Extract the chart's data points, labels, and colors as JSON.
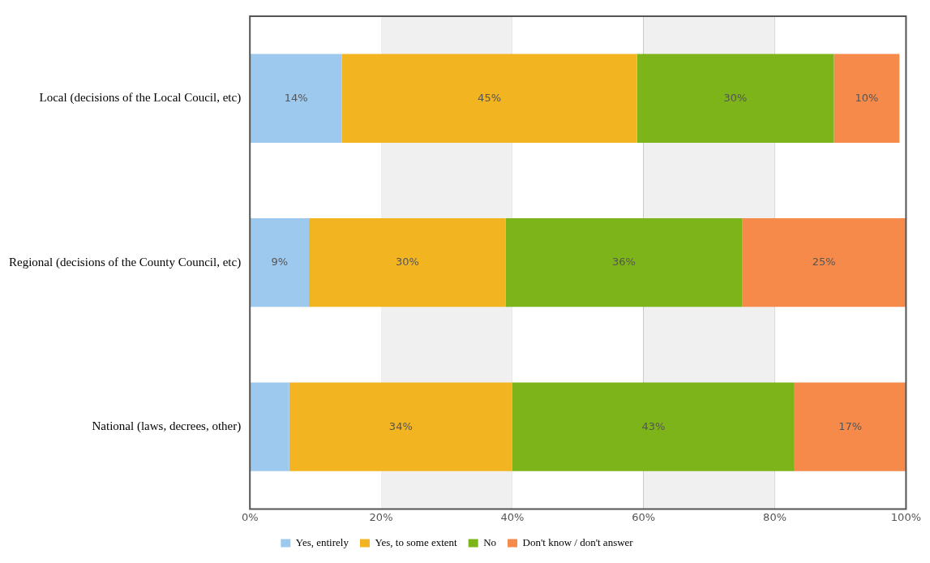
{
  "chart_data": {
    "type": "bar",
    "orientation": "horizontal",
    "stacked": true,
    "categories": [
      "Local (decisions of the Local Coucil, etc)",
      "Regional (decisions of the County Council, etc)",
      "National (laws, decrees, other)"
    ],
    "series": [
      {
        "name": "Yes, entirely",
        "color": "#9ec9ef",
        "values": [
          14,
          9,
          6
        ],
        "value_labels": [
          "14%",
          "9%",
          null
        ]
      },
      {
        "name": "Yes, to some extent",
        "color": "#f2b420",
        "values": [
          45,
          30,
          34
        ],
        "value_labels": [
          "45%",
          "30%",
          "34%"
        ]
      },
      {
        "name": "No",
        "color": "#7db41a",
        "values": [
          30,
          36,
          43
        ],
        "value_labels": [
          "30%",
          "36%",
          "43%"
        ]
      },
      {
        "name": "Don't know / don't answer",
        "color": "#f58a4b",
        "values": [
          10,
          25,
          17
        ],
        "value_labels": [
          "10%",
          "25%",
          "17%"
        ]
      }
    ],
    "xlim": [
      0,
      100
    ],
    "xticks": [
      {
        "value": 0,
        "label": "0%"
      },
      {
        "value": 20,
        "label": "20%"
      },
      {
        "value": 40,
        "label": "40%"
      },
      {
        "value": 60,
        "label": "60%"
      },
      {
        "value": 80,
        "label": "80%"
      },
      {
        "value": 100,
        "label": "100%"
      }
    ],
    "bands": [
      {
        "axis": "x",
        "from": 20,
        "to": 40,
        "color": "#f0f0f0"
      },
      {
        "axis": "x",
        "from": 60,
        "to": 80,
        "color": "#f0f0f0"
      }
    ],
    "grid": "x",
    "legend": "bottom"
  }
}
